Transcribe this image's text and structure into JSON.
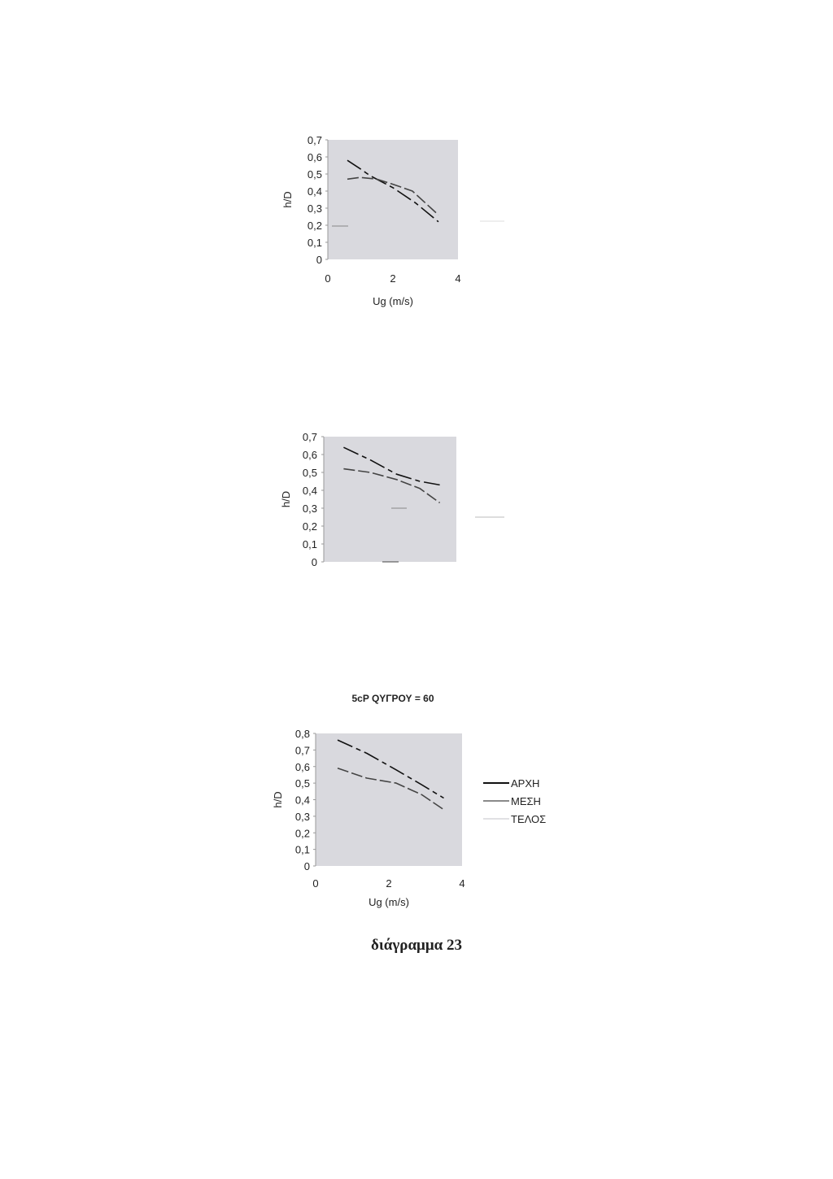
{
  "colors": {
    "plot_bg": "#d9d9de",
    "arxi": "#111111",
    "mesi": "#444444",
    "telos": "#cfcfd4"
  },
  "caption": "διάγραμμα 23",
  "chart_data": [
    {
      "type": "line",
      "title": "",
      "xlabel": "Ug (m/s)",
      "ylabel": "h/D",
      "xlim": [
        0,
        4
      ],
      "ylim": [
        0,
        0.7
      ],
      "xticks": [
        "0",
        "2",
        "4"
      ],
      "yticks": [
        "0",
        "0,1",
        "0,2",
        "0,3",
        "0,4",
        "0,5",
        "0,6",
        "0,7"
      ],
      "grid": false,
      "series": [
        {
          "x": [
            0.6,
            1.0,
            1.3,
            2.0,
            2.7,
            3.4
          ],
          "y": [
            0.58,
            0.53,
            0.49,
            0.42,
            0.33,
            0.22
          ]
        },
        {
          "x": [
            0.6,
            1.0,
            1.5,
            2.0,
            2.6,
            3.4
          ],
          "y": [
            0.47,
            0.48,
            0.47,
            0.44,
            0.4,
            0.26
          ]
        }
      ]
    },
    {
      "type": "line",
      "title": "",
      "xlabel": "",
      "ylabel": "h/D",
      "xlim": [
        0,
        4
      ],
      "ylim": [
        0,
        0.7
      ],
      "xticks": [],
      "yticks": [
        "0",
        "0,1",
        "0,2",
        "0,3",
        "0,4",
        "0,5",
        "0,6",
        "0,7"
      ],
      "grid": false,
      "series": [
        {
          "x": [
            0.6,
            1.4,
            2.2,
            2.9,
            3.5
          ],
          "y": [
            0.64,
            0.57,
            0.49,
            0.45,
            0.43
          ]
        },
        {
          "x": [
            0.6,
            1.4,
            2.2,
            2.9,
            3.5
          ],
          "y": [
            0.52,
            0.5,
            0.46,
            0.41,
            0.33
          ]
        }
      ]
    },
    {
      "type": "line",
      "title": "5cP QΥΓΡΟΥ = 60",
      "xlabel": "Ug (m/s)",
      "ylabel": "h/D",
      "xlim": [
        0,
        4
      ],
      "ylim": [
        0,
        0.8
      ],
      "xticks": [
        "0",
        "2",
        "4"
      ],
      "yticks": [
        "0",
        "0,1",
        "0,2",
        "0,3",
        "0,4",
        "0,5",
        "0,6",
        "0,7",
        "0,8"
      ],
      "grid": false,
      "legend": {
        "placement": "right",
        "entries": [
          "ΑΡΧΗ",
          "ΜΕΣΗ",
          "ΤΕΛΟΣ"
        ]
      },
      "series": [
        {
          "name": "ΑΡΧΗ",
          "x": [
            0.6,
            1.4,
            2.2,
            2.9,
            3.5
          ],
          "y": [
            0.76,
            0.68,
            0.58,
            0.49,
            0.41
          ]
        },
        {
          "name": "ΜΕΣΗ",
          "x": [
            0.6,
            1.4,
            2.2,
            2.9,
            3.5
          ],
          "y": [
            0.59,
            0.53,
            0.5,
            0.43,
            0.34
          ]
        }
      ]
    }
  ]
}
